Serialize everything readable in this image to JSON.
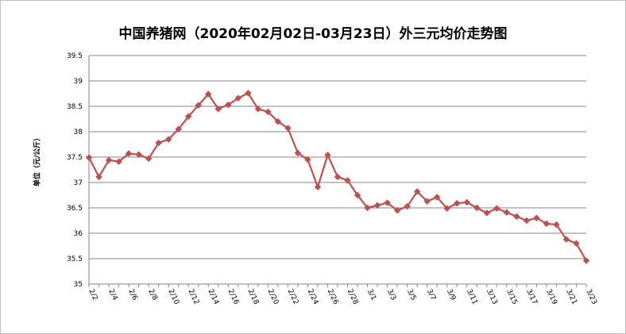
{
  "chart_data": {
    "type": "line",
    "title": "中国养猪网（2020年02月02日-03月23日）外三元均价走势图",
    "xlabel": "",
    "ylabel": "单位（元/公斤）",
    "ylim": [
      35,
      39.5
    ],
    "yticks": [
      "35",
      "35.5",
      "36",
      "36.5",
      "37",
      "37.5",
      "38",
      "38.5",
      "39",
      "39.5"
    ],
    "grid": true,
    "legend": "none",
    "color": "#c0504d",
    "x": [
      "2/2",
      "2/3",
      "2/4",
      "2/5",
      "2/6",
      "2/7",
      "2/8",
      "2/9",
      "2/10",
      "2/11",
      "2/12",
      "2/13",
      "2/14",
      "2/15",
      "2/16",
      "2/17",
      "2/18",
      "2/19",
      "2/20",
      "2/21",
      "2/22",
      "2/23",
      "2/24",
      "2/25",
      "2/26",
      "2/27",
      "2/28",
      "2/29",
      "3/1",
      "3/2",
      "3/3",
      "3/4",
      "3/5",
      "3/6",
      "3/7",
      "3/8",
      "3/9",
      "3/10",
      "3/11",
      "3/12",
      "3/13",
      "3/14",
      "3/15",
      "3/16",
      "3/17",
      "3/18",
      "3/19",
      "3/20",
      "3/21",
      "3/22",
      "3/23"
    ],
    "xtick_labels": [
      "2/2",
      "2/4",
      "2/6",
      "2/8",
      "2/10",
      "2/12",
      "2/14",
      "2/16",
      "2/18",
      "2/20",
      "2/22",
      "2/24",
      "2/26",
      "2/28",
      "3/1",
      "3/3",
      "3/5",
      "3/7",
      "3/9",
      "3/11",
      "3/13",
      "3/15",
      "3/17",
      "3/19",
      "3/21",
      "3/23"
    ],
    "series": [
      {
        "values": [
          37.49,
          37.11,
          37.44,
          37.41,
          37.57,
          37.55,
          37.47,
          37.78,
          37.85,
          38.05,
          38.3,
          38.52,
          38.74,
          38.45,
          38.53,
          38.66,
          38.76,
          38.45,
          38.39,
          38.2,
          38.07,
          37.58,
          37.45,
          36.91,
          37.54,
          37.11,
          37.04,
          36.75,
          36.5,
          36.55,
          36.6,
          36.45,
          36.53,
          36.82,
          36.63,
          36.71,
          36.49,
          36.59,
          36.61,
          36.5,
          36.4,
          36.49,
          36.41,
          36.33,
          36.25,
          36.3,
          36.19,
          36.17,
          35.88,
          35.8,
          35.46
        ]
      }
    ]
  }
}
